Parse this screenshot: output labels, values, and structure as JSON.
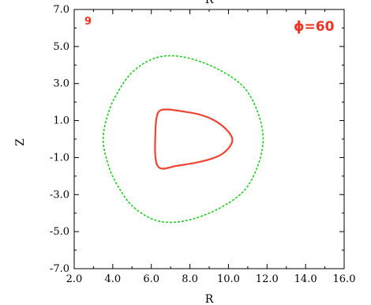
{
  "chart_data": {
    "type": "line",
    "title": "",
    "xlabel": "R",
    "ylabel": "Z",
    "top_edge_label": "R",
    "xlim": [
      2.0,
      16.0
    ],
    "ylim": [
      -7.0,
      7.0
    ],
    "xticks": [
      "2.0",
      "4.0",
      "6.0",
      "8.0",
      "10.0",
      "12.0",
      "14.0",
      "16.0"
    ],
    "yticks": [
      "-7.0",
      "-5.0",
      "-3.0",
      "-1.0",
      "1.0",
      "3.0",
      "5.0",
      "7.0"
    ],
    "panel_label": "9",
    "phi_text": "=60",
    "phi_symbol": "ϕ",
    "colors": {
      "inner": "#ee4433",
      "outer": "#22cc22",
      "annotation": "#ee3322"
    },
    "series": [
      {
        "style": "solid",
        "color": "#ee4433",
        "points": [
          [
            6.2,
            0.0
          ],
          [
            6.25,
            1.0
          ],
          [
            6.4,
            1.5
          ],
          [
            6.8,
            1.6
          ],
          [
            7.6,
            1.5
          ],
          [
            8.4,
            1.35
          ],
          [
            9.1,
            1.1
          ],
          [
            9.7,
            0.7
          ],
          [
            10.1,
            0.25
          ],
          [
            10.2,
            -0.1
          ],
          [
            10.0,
            -0.5
          ],
          [
            9.6,
            -0.85
          ],
          [
            9.0,
            -1.1
          ],
          [
            8.2,
            -1.3
          ],
          [
            7.3,
            -1.45
          ],
          [
            6.6,
            -1.6
          ],
          [
            6.3,
            -1.4
          ],
          [
            6.2,
            -0.8
          ],
          [
            6.2,
            0.0
          ]
        ]
      },
      {
        "style": "dashed",
        "color": "#22cc22",
        "points": [
          [
            3.5,
            0.0
          ],
          [
            3.8,
            1.5
          ],
          [
            4.3,
            2.6
          ],
          [
            5.0,
            3.6
          ],
          [
            6.0,
            4.3
          ],
          [
            7.0,
            4.5
          ],
          [
            8.2,
            4.3
          ],
          [
            9.6,
            3.7
          ],
          [
            10.8,
            2.8
          ],
          [
            11.5,
            1.5
          ],
          [
            11.8,
            0.0
          ],
          [
            11.5,
            -1.5
          ],
          [
            10.8,
            -2.8
          ],
          [
            9.6,
            -3.7
          ],
          [
            8.2,
            -4.3
          ],
          [
            7.0,
            -4.5
          ],
          [
            6.0,
            -4.3
          ],
          [
            5.0,
            -3.6
          ],
          [
            4.3,
            -2.6
          ],
          [
            3.8,
            -1.5
          ],
          [
            3.5,
            0.0
          ]
        ]
      }
    ]
  }
}
